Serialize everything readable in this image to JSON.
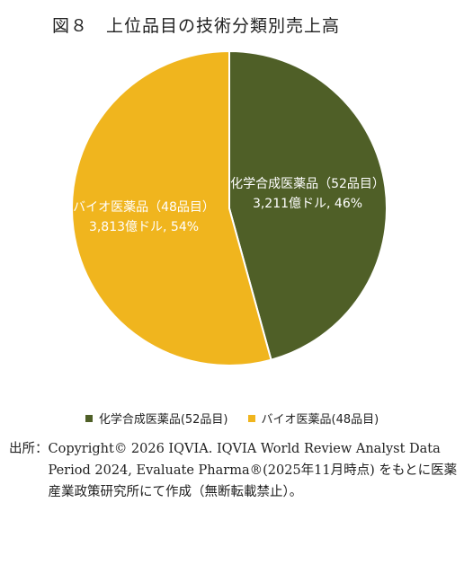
{
  "figure": {
    "title": "図８　上位品目の技術分類別売上高"
  },
  "chart_data": {
    "type": "pie",
    "series": [
      {
        "name": "化学合成医薬品(52品目)",
        "label_line1": "化学合成医薬品（52品目）",
        "label_line2": "3,211億ドル, 46%",
        "value": 3211,
        "percent": 46,
        "unit": "億ドル",
        "color": "#4f5f27"
      },
      {
        "name": "バイオ医薬品(48品目)",
        "label_line1": "バイオ医薬品（48品目）",
        "label_line2": "3,813億ドル, 54%",
        "value": 3813,
        "percent": 54,
        "unit": "億ドル",
        "color": "#f0b51e"
      }
    ],
    "start_angle": "12 o'clock",
    "direction": "clockwise",
    "legend_position": "bottom",
    "data_label_color": "#ffffff"
  },
  "legend": {
    "items": [
      {
        "label": "化学合成医薬品(52品目)",
        "color": "#4f5f27"
      },
      {
        "label": "バイオ医薬品(48品目)",
        "color": "#f0b51e"
      }
    ]
  },
  "source": {
    "label": "出所：",
    "text": "Copyright© 2026 IQVIA. IQVIA World Review Analyst Data Period 2024, Evaluate Pharma®(2025年11月時点) をもとに医薬産業政策研究所にて作成（無断転載禁止）。"
  }
}
